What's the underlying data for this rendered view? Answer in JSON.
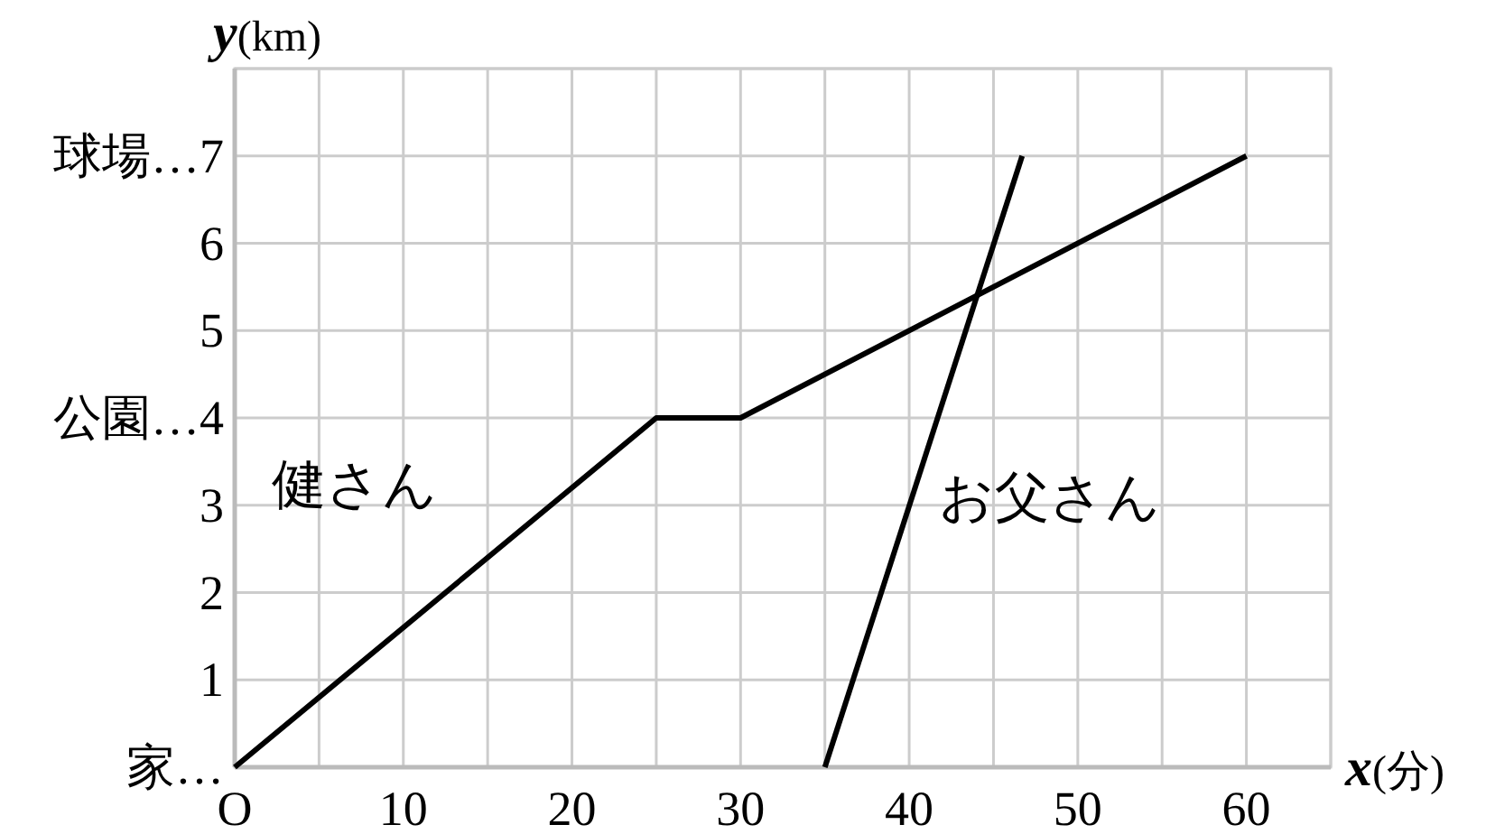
{
  "chart_data": {
    "type": "line",
    "xlabel": "x(分)",
    "ylabel": "y(km)",
    "xlim": [
      0,
      65
    ],
    "ylim": [
      0,
      8
    ],
    "xticks": [
      {
        "value": 0,
        "label": "O"
      },
      {
        "value": 5,
        "label": null
      },
      10,
      {
        "value": 15,
        "label": null
      },
      20,
      {
        "value": 25,
        "label": null
      },
      30,
      {
        "value": 35,
        "label": null
      },
      40,
      {
        "value": 45,
        "label": null
      },
      50,
      {
        "value": 55,
        "label": null
      },
      60,
      {
        "value": 65,
        "label": null
      }
    ],
    "yticks": [
      {
        "value": 0,
        "label": "家…"
      },
      1,
      2,
      3,
      {
        "value": 4,
        "label": "公園…4"
      },
      5,
      6,
      {
        "value": 7,
        "label": "球場…7"
      },
      {
        "value": 8,
        "label": null
      }
    ],
    "grid": true,
    "series": [
      {
        "name": "健さん",
        "color": "#000000",
        "x": [
          0,
          25,
          30,
          60
        ],
        "values": [
          0,
          4,
          4,
          7
        ]
      },
      {
        "name": "お父さん",
        "color": "#000000",
        "x": [
          35,
          46.7
        ],
        "values": [
          0,
          7
        ]
      }
    ]
  }
}
